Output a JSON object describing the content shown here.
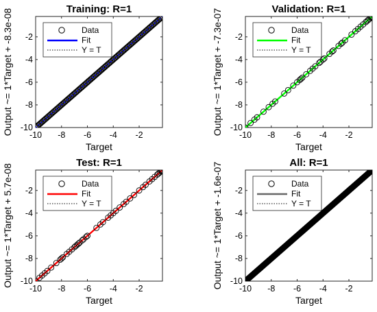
{
  "chart_data": [
    {
      "type": "scatter",
      "title": "Training: R=1",
      "xlabel": "Target",
      "ylabel": "Output ~= 1*Target + -8.3e-08",
      "xlim": [
        -10,
        -0.2
      ],
      "ylim": [
        -10,
        -0.2
      ],
      "xticks": [
        -10,
        -8,
        -6,
        -4,
        -2
      ],
      "yticks": [
        -10,
        -8,
        -6,
        -4,
        -2
      ],
      "fit_color": "#0000ff",
      "fit": {
        "slope": 1,
        "intercept": -8.3e-08
      },
      "legend": [
        "Data",
        "Fit",
        "Y = T"
      ],
      "legend_position": "top-left",
      "points_note_density": "dense",
      "data": {
        "x_min": -10,
        "x_max": -0.2,
        "count": 140
      }
    },
    {
      "type": "scatter",
      "title": "Validation: R=1",
      "xlabel": "Target",
      "ylabel": "Output ~= 1*Target + -7.3e-07",
      "xlim": [
        -10,
        -0.2
      ],
      "ylim": [
        -10,
        -0.2
      ],
      "xticks": [
        -10,
        -8,
        -6,
        -4,
        -2
      ],
      "yticks": [
        -10,
        -8,
        -6,
        -4,
        -2
      ],
      "fit_color": "#00ff00",
      "fit": {
        "slope": 1,
        "intercept": -7.3e-07
      },
      "legend": [
        "Data",
        "Fit",
        "Y = T"
      ],
      "legend_position": "top-left",
      "points": [
        -10,
        -9.6,
        -9.3,
        -9.1,
        -8.6,
        -8.2,
        -7.9,
        -7.7,
        -7.0,
        -6.7,
        -6.3,
        -6.0,
        -5.8,
        -5.7,
        -5.6,
        -5.3,
        -5.0,
        -4.8,
        -4.6,
        -4.3,
        -4.2,
        -4.0,
        -3.9,
        -3.5,
        -3.3,
        -3.2,
        -2.8,
        -2.6,
        -2.5,
        -2.3,
        -1.8,
        -1.5,
        -1.3,
        -1.1,
        -0.9,
        -0.7,
        -0.6,
        -0.5,
        -0.4,
        -0.3,
        -0.25,
        -0.2
      ]
    },
    {
      "type": "scatter",
      "title": "Test: R=1",
      "xlabel": "Target",
      "ylabel": "Output ~= 1*Target + 5.7e-08",
      "xlim": [
        -10,
        -0.2
      ],
      "ylim": [
        -10,
        -0.2
      ],
      "xticks": [
        -10,
        -8,
        -6,
        -4,
        -2
      ],
      "yticks": [
        -10,
        -8,
        -6,
        -4,
        -2
      ],
      "fit_color": "#ff0000",
      "fit": {
        "slope": 1,
        "intercept": 5.7e-08
      },
      "legend": [
        "Data",
        "Fit",
        "Y = T"
      ],
      "legend_position": "top-left",
      "points": [
        -10,
        -9.7,
        -9.5,
        -9.3,
        -9.1,
        -8.8,
        -8.4,
        -8.1,
        -8.0,
        -7.9,
        -7.6,
        -7.4,
        -7.2,
        -7.0,
        -6.9,
        -6.8,
        -6.7,
        -6.6,
        -6.4,
        -6.3,
        -6.1,
        -6.0,
        -5.3,
        -5.0,
        -4.8,
        -4.4,
        -4.2,
        -4.0,
        -3.8,
        -3.5,
        -3.2,
        -3.0,
        -2.7,
        -2.4,
        -2.0,
        -1.7,
        -1.5,
        -1.2,
        -1.0,
        -0.8,
        -0.6,
        -0.5,
        -0.4,
        -0.3,
        -0.25,
        -0.2
      ]
    },
    {
      "type": "scatter",
      "title": "All: R=1",
      "xlabel": "Target",
      "ylabel": "Output ~= 1*Target + -1.6e-07",
      "xlim": [
        -10,
        -0.2
      ],
      "ylim": [
        -10,
        -0.2
      ],
      "xticks": [
        -10,
        -8,
        -6,
        -4,
        -2
      ],
      "yticks": [
        -10,
        -8,
        -6,
        -4,
        -2
      ],
      "fit_color": "#666666",
      "fit": {
        "slope": 1,
        "intercept": -1.6e-07
      },
      "legend": [
        "Data",
        "Fit",
        "Y = T"
      ],
      "legend_position": "top-left",
      "data": {
        "x_min": -10,
        "x_max": -0.2,
        "count": 400
      }
    }
  ]
}
